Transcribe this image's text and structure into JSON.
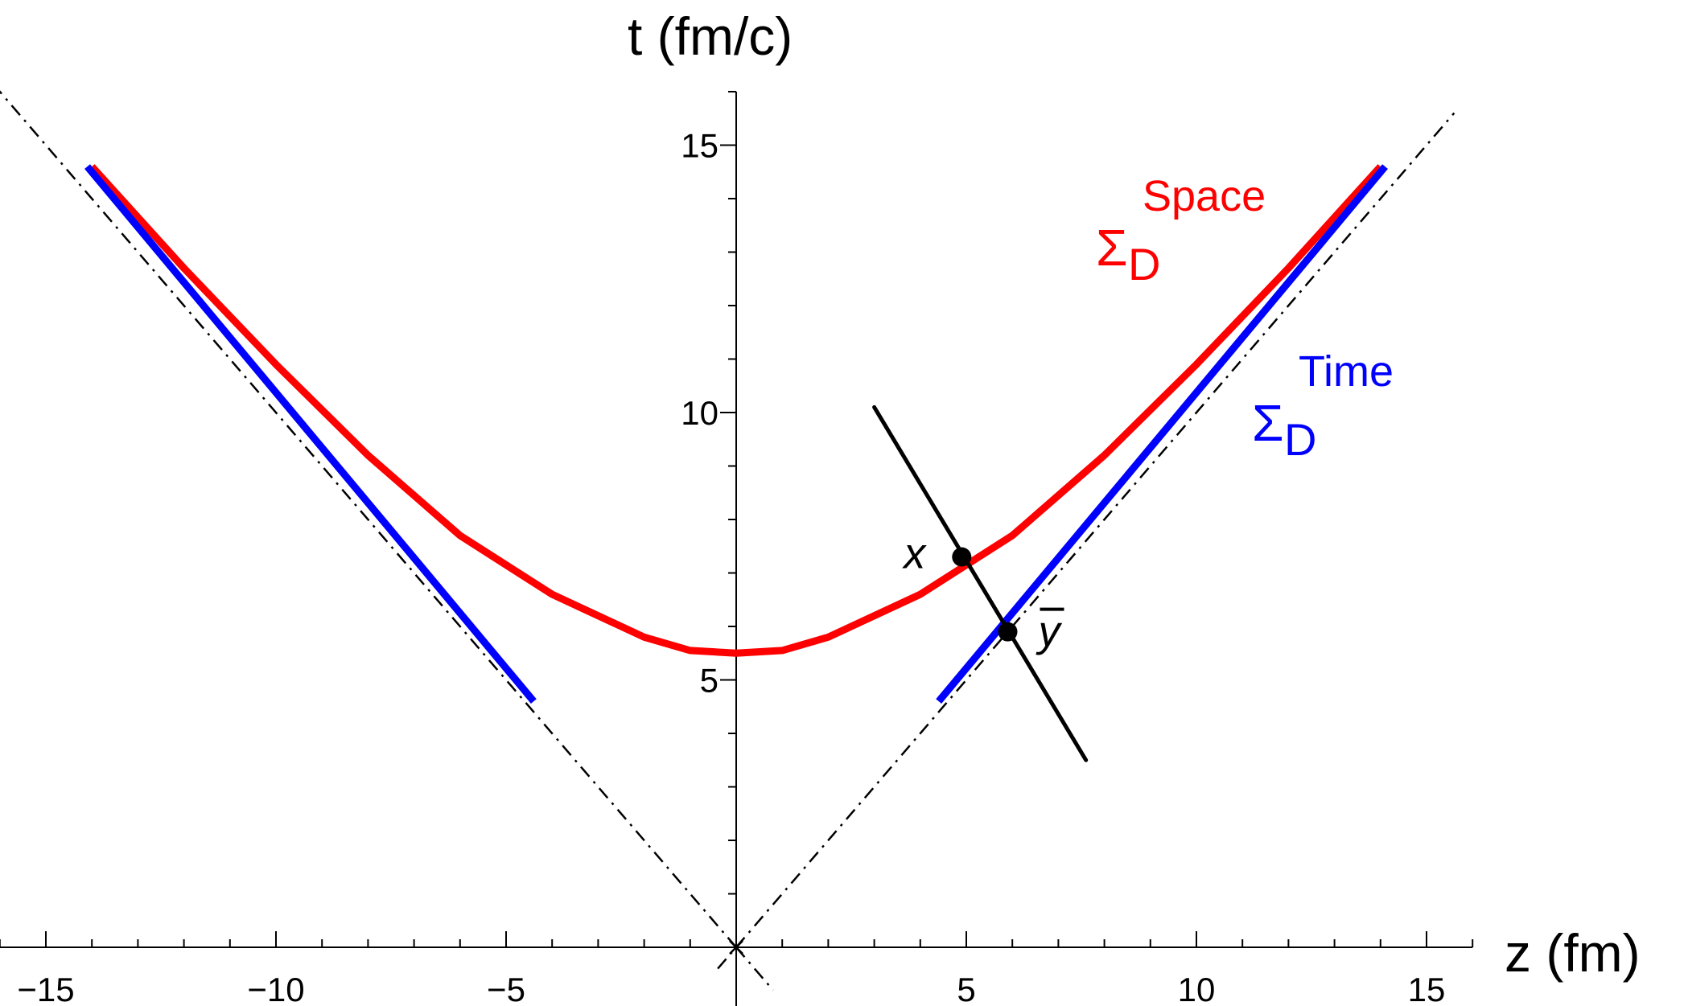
{
  "chart_data": {
    "type": "line",
    "xlabel": "z (fm)",
    "ylabel": "t (fm/c)",
    "xlim": [
      -16,
      16
    ],
    "ylim": [
      0,
      16
    ],
    "x_ticks": [
      -15,
      -10,
      -5,
      5,
      10,
      15
    ],
    "y_ticks": [
      5,
      10,
      15
    ],
    "grid": false,
    "series": [
      {
        "name": "Σ_D^Space",
        "label_main": "Σ",
        "label_sub": "D",
        "label_sup": "Space",
        "color": "#ff0000",
        "x": [
          -14,
          -12,
          -10,
          -8,
          -6,
          -4,
          -2,
          -1,
          0,
          1,
          2,
          4,
          6,
          8,
          10,
          12,
          14
        ],
        "y": [
          14.6,
          12.7,
          10.9,
          9.2,
          7.7,
          6.6,
          5.8,
          5.55,
          5.5,
          5.55,
          5.8,
          6.6,
          7.7,
          9.2,
          10.9,
          12.7,
          14.6
        ]
      },
      {
        "name": "Σ_D^Time (left)",
        "label_main": "",
        "color": "#0000ff",
        "x": [
          -14.1,
          -4.4
        ],
        "y": [
          14.6,
          4.6
        ]
      },
      {
        "name": "Σ_D^Time",
        "label_main": "Σ",
        "label_sub": "D",
        "label_sup": "Time",
        "color": "#0000ff",
        "x": [
          4.4,
          14.1
        ],
        "y": [
          4.6,
          14.6
        ]
      }
    ],
    "light_cone": [
      {
        "x": [
          0,
          -16.5
        ],
        "y": [
          0,
          16.5
        ]
      },
      {
        "x": [
          0,
          15.6
        ],
        "y": [
          0,
          15.6
        ]
      },
      {
        "x": [
          -0.4,
          0
        ],
        "y": [
          -0.4,
          0
        ]
      },
      {
        "x": [
          0,
          0.8
        ],
        "y": [
          0,
          -0.8
        ]
      }
    ],
    "normal_line": {
      "x": [
        3,
        7.6
      ],
      "y": [
        10.1,
        3.5
      ]
    },
    "points": [
      {
        "label": "x",
        "x": 4.9,
        "y": 7.3
      },
      {
        "label": "ȳ",
        "label_base": "y",
        "x": 5.9,
        "y": 5.9
      }
    ]
  }
}
